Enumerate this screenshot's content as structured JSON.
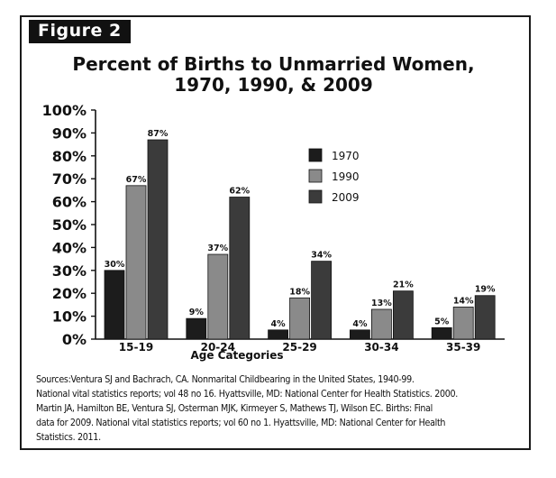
{
  "figure_label": "Figure 2",
  "title_line1": "Percent of Births to Unmarried Women,",
  "title_line2": "1970, 1990, & 2009",
  "sources": [
    "Sources:Ventura SJ and Bachrach, CA. Nonmarital Childbearing in the United States, 1940-99.",
    "National vital statistics reports; vol 48 no 16. Hyattsville, MD: National Center for Health Statistics. 2000.",
    "Martin JA, Hamilton BE, Ventura SJ, Osterman MJK, Kirmeyer S, Mathews TJ, Wilson EC. Births: Final",
    "data for 2009. National vital statistics reports; vol 60 no 1. Hyattsville, MD: National Center for Health",
    "Statistics. 2011."
  ],
  "chart_data": {
    "type": "bar",
    "title": "Percent of Births to Unmarried Women, 1970, 1990, & 2009",
    "xlabel": "Age Categories",
    "ylabel": "",
    "categories": [
      "15-19",
      "20-24",
      "25-29",
      "30-34",
      "35-39"
    ],
    "series": [
      {
        "name": "1970",
        "values": [
          30,
          9,
          4,
          4,
          5
        ],
        "labels": [
          "30%",
          "9%",
          "4%",
          "4%",
          "5%"
        ],
        "color": "#1c1c1c"
      },
      {
        "name": "1990",
        "values": [
          67,
          37,
          18,
          13,
          14
        ],
        "labels": [
          "67%",
          "37%",
          "18%",
          "13%",
          "14%"
        ],
        "color": "#8a8a8a"
      },
      {
        "name": "2009",
        "values": [
          87,
          62,
          34,
          21,
          19
        ],
        "labels": [
          "87%",
          "62%",
          "34%",
          "21%",
          "19%"
        ],
        "color": "#3b3b3b"
      }
    ],
    "ylim": [
      0,
      100
    ],
    "yticks": [
      "0%",
      "10%",
      "20%",
      "30%",
      "40%",
      "50%",
      "60%",
      "70%",
      "80%",
      "90%",
      "100%"
    ],
    "grid": false,
    "legend": "top-right"
  }
}
